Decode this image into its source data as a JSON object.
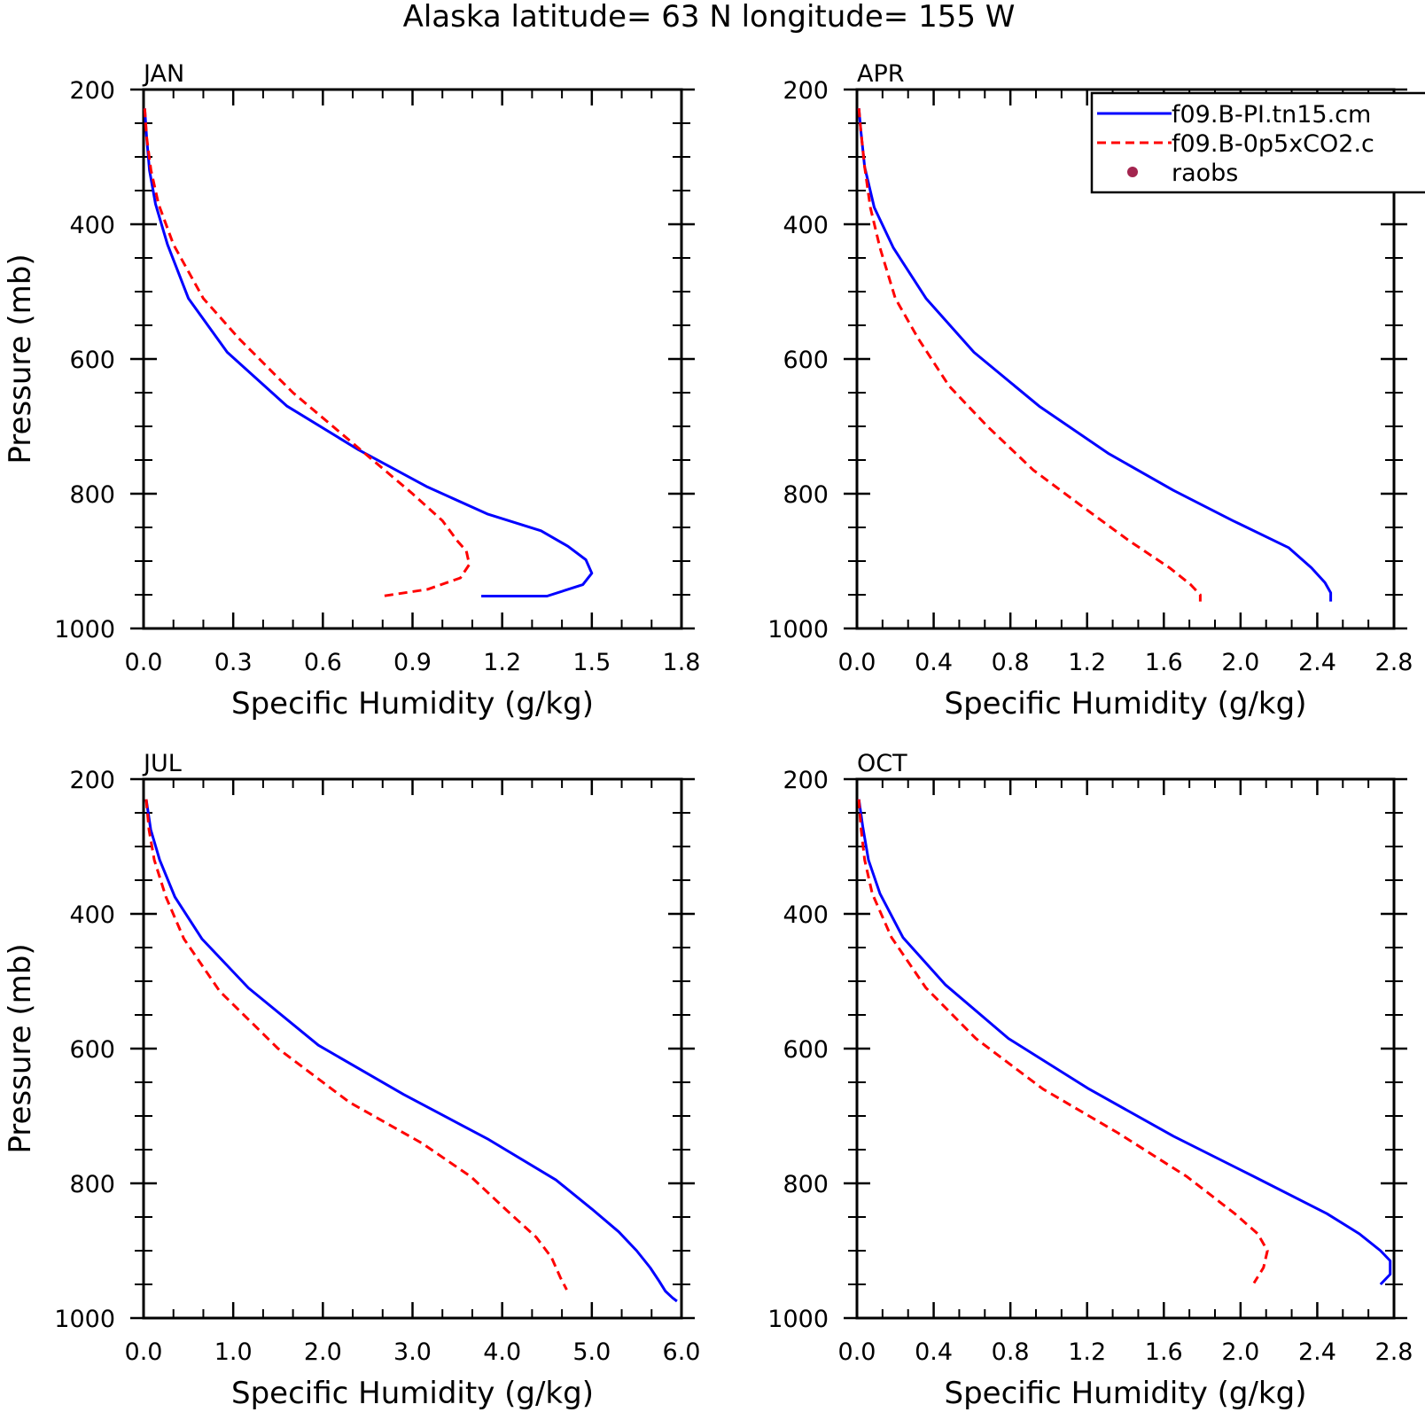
{
  "title": "Alaska  latitude= 63 N longitude= 155 W",
  "colors": {
    "series_1": "#0000ff",
    "series_2": "#ff0000",
    "raobs": "#a3254f"
  },
  "legend": {
    "placement": "top-right of APR panel (clipped at page edge)",
    "entries": [
      {
        "label": "f09.B-PI.tn15.cm",
        "style": "solid",
        "color": "#0000ff"
      },
      {
        "label": "f09.B-0p5xCO2.c",
        "style": "dashed",
        "color": "#ff0000"
      },
      {
        "label": "raobs",
        "style": "dot",
        "color": "#a3254f"
      }
    ]
  },
  "chart_data": [
    {
      "type": "line",
      "title": "JAN",
      "xlabel": "Specific Humidity (g/kg)",
      "ylabel": "Pressure (mb)",
      "xlim": [
        0,
        1.8
      ],
      "ylim": [
        1000,
        200
      ],
      "y_reversed": true,
      "grid": false,
      "xticks": [
        "0.0",
        "0.3",
        "0.6",
        "0.9",
        "1.2",
        "1.5",
        "1.8"
      ],
      "yticks": [
        "200",
        "400",
        "600",
        "800",
        "1000"
      ],
      "series": [
        {
          "color": "#0000ff",
          "style": "solid",
          "x": [
            0.004,
            0.01,
            0.02,
            0.04,
            0.08,
            0.15,
            0.28,
            0.48,
            0.72,
            0.95,
            1.15,
            1.33,
            1.42,
            1.48,
            1.5,
            1.47,
            1.35,
            1.13
          ],
          "y": [
            228,
            270,
            320,
            370,
            430,
            510,
            590,
            670,
            735,
            790,
            830,
            855,
            878,
            898,
            918,
            935,
            952,
            952
          ]
        },
        {
          "color": "#ff0000",
          "style": "dashed",
          "x": [
            0.004,
            0.01,
            0.025,
            0.05,
            0.1,
            0.2,
            0.32,
            0.5,
            0.7,
            0.9,
            1.0,
            1.05,
            1.08,
            1.09,
            1.06,
            0.95,
            0.8
          ],
          "y": [
            228,
            270,
            320,
            370,
            430,
            510,
            570,
            650,
            725,
            800,
            840,
            870,
            885,
            905,
            925,
            942,
            952
          ]
        }
      ]
    },
    {
      "type": "line",
      "title": "APR",
      "xlabel": "Specific Humidity (g/kg)",
      "ylabel": "",
      "xlim": [
        0,
        2.8
      ],
      "ylim": [
        1000,
        200
      ],
      "y_reversed": true,
      "grid": false,
      "xticks": [
        "0.0",
        "0.4",
        "0.8",
        "1.2",
        "1.6",
        "2.0",
        "2.4",
        "2.8"
      ],
      "yticks": [
        "200",
        "400",
        "600",
        "800",
        "1000"
      ],
      "series": [
        {
          "color": "#0000ff",
          "style": "solid",
          "x": [
            0.01,
            0.02,
            0.04,
            0.09,
            0.19,
            0.36,
            0.61,
            0.95,
            1.31,
            1.65,
            1.96,
            2.25,
            2.37,
            2.44,
            2.47,
            2.47
          ],
          "y": [
            228,
            260,
            315,
            375,
            435,
            510,
            590,
            670,
            740,
            795,
            840,
            880,
            910,
            932,
            947,
            960
          ]
        },
        {
          "color": "#ff0000",
          "style": "dashed",
          "x": [
            0.01,
            0.02,
            0.04,
            0.07,
            0.12,
            0.2,
            0.32,
            0.48,
            0.68,
            0.92,
            1.18,
            1.42,
            1.63,
            1.74,
            1.79,
            1.79
          ],
          "y": [
            228,
            260,
            315,
            375,
            435,
            510,
            570,
            640,
            700,
            765,
            820,
            870,
            910,
            935,
            950,
            960
          ]
        }
      ]
    },
    {
      "type": "line",
      "title": "JUL",
      "xlabel": "Specific Humidity (g/kg)",
      "ylabel": "Pressure (mb)",
      "xlim": [
        0,
        6.0
      ],
      "ylim": [
        1000,
        200
      ],
      "y_reversed": true,
      "grid": false,
      "xticks": [
        "0.0",
        "1.0",
        "2.0",
        "3.0",
        "4.0",
        "5.0",
        "6.0"
      ],
      "yticks": [
        "200",
        "400",
        "600",
        "800",
        "1000"
      ],
      "series": [
        {
          "color": "#0000ff",
          "style": "solid",
          "x": [
            0.03,
            0.08,
            0.18,
            0.35,
            0.65,
            1.17,
            1.95,
            2.9,
            3.85,
            4.6,
            5.0,
            5.3,
            5.5,
            5.65,
            5.75,
            5.82,
            5.9,
            5.95
          ],
          "y": [
            230,
            275,
            320,
            375,
            437,
            510,
            595,
            668,
            735,
            795,
            838,
            872,
            900,
            925,
            945,
            960,
            970,
            975
          ]
        },
        {
          "color": "#ff0000",
          "style": "dashed",
          "x": [
            0.03,
            0.06,
            0.12,
            0.25,
            0.45,
            0.85,
            1.5,
            2.3,
            3.1,
            3.65,
            4.05,
            4.38,
            4.55,
            4.65,
            4.72
          ],
          "y": [
            230,
            275,
            320,
            375,
            437,
            515,
            600,
            680,
            740,
            790,
            840,
            880,
            910,
            940,
            958
          ]
        }
      ]
    },
    {
      "type": "line",
      "title": "OCT",
      "xlabel": "Specific Humidity (g/kg)",
      "ylabel": "",
      "xlim": [
        0,
        2.8
      ],
      "ylim": [
        1000,
        200
      ],
      "y_reversed": true,
      "grid": false,
      "xticks": [
        "0.0",
        "0.4",
        "0.8",
        "1.2",
        "1.6",
        "2.0",
        "2.4",
        "2.8"
      ],
      "yticks": [
        "200",
        "400",
        "600",
        "800",
        "1000"
      ],
      "series": [
        {
          "color": "#0000ff",
          "style": "solid",
          "x": [
            0.01,
            0.03,
            0.06,
            0.12,
            0.24,
            0.46,
            0.79,
            1.21,
            1.65,
            2.07,
            2.45,
            2.62,
            2.73,
            2.78,
            2.78,
            2.73
          ],
          "y": [
            230,
            270,
            320,
            370,
            435,
            505,
            585,
            660,
            730,
            790,
            845,
            875,
            900,
            915,
            935,
            950
          ]
        },
        {
          "color": "#ff0000",
          "style": "dashed",
          "x": [
            0.01,
            0.02,
            0.04,
            0.08,
            0.18,
            0.36,
            0.62,
            0.97,
            1.36,
            1.72,
            1.97,
            2.09,
            2.14,
            2.12,
            2.07
          ],
          "y": [
            230,
            270,
            320,
            370,
            435,
            510,
            585,
            660,
            725,
            790,
            845,
            875,
            900,
            925,
            948
          ]
        }
      ]
    }
  ]
}
